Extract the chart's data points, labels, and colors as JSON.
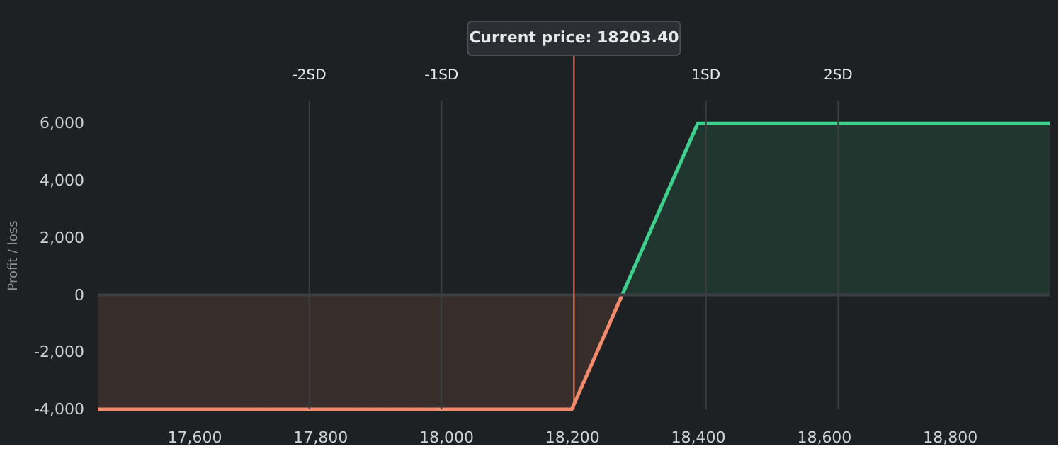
{
  "chart_data": {
    "type": "area",
    "ylabel": "Profit / loss",
    "series": [
      {
        "color": "#f28b6e",
        "x": [
          17447,
          18200,
          18280
        ],
        "values": [
          -4000,
          -4000,
          0
        ]
      },
      {
        "color": "#3ecf8e",
        "x": [
          18280,
          18400,
          18959
        ],
        "values": [
          0,
          6000,
          6000
        ]
      }
    ],
    "xlim": [
      17447,
      18959
    ],
    "xticks": [
      {
        "value": 17600,
        "label": "17,600"
      },
      {
        "value": 17800,
        "label": "17,800"
      },
      {
        "value": 18000,
        "label": "18,000"
      },
      {
        "value": 18200,
        "label": "18,200"
      },
      {
        "value": 18400,
        "label": "18,400"
      },
      {
        "value": 18600,
        "label": "18,600"
      },
      {
        "value": 18800,
        "label": "18,800"
      }
    ],
    "ylim": [
      -4000,
      6800
    ],
    "yticks": [
      {
        "value": -4000,
        "label": "-4,000"
      },
      {
        "value": -2000,
        "label": "-2,000"
      },
      0,
      {
        "value": 2000,
        "label": "2,000"
      },
      {
        "value": 4000,
        "label": "4,000"
      },
      {
        "value": 6000,
        "label": "6,000"
      }
    ],
    "ref_lines": [
      {
        "axis": "y",
        "value": 0,
        "color": "#3a3e42"
      },
      {
        "axis": "x",
        "value": 17783,
        "label": "-2SD",
        "color": "#3a3e42"
      },
      {
        "axis": "x",
        "value": 17993,
        "label": "-1SD",
        "color": "#3a3e42"
      },
      {
        "axis": "x",
        "value": 18413,
        "label": "1SD",
        "color": "#3a3e42"
      },
      {
        "axis": "x",
        "value": 18623,
        "label": "2SD",
        "color": "#3a3e42"
      },
      {
        "axis": "x",
        "value": 18203.4,
        "label": "Current price: 18203.40",
        "color": "#f28b6e"
      }
    ],
    "grid": false
  }
}
